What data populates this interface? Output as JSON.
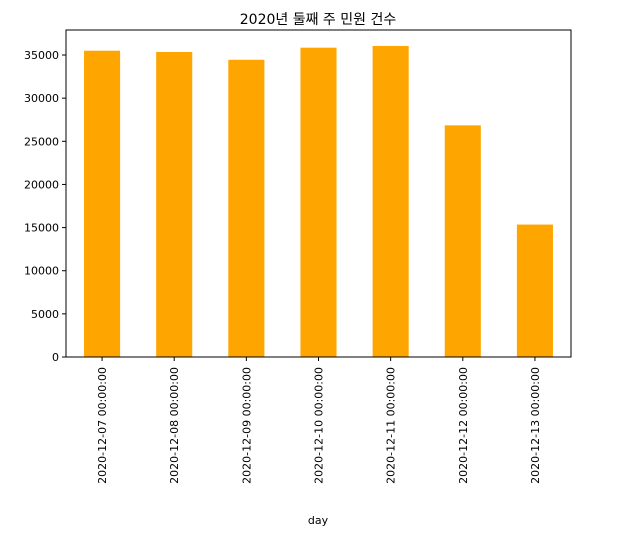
{
  "chart_data": {
    "type": "bar",
    "title": "2020년 둘째 주 민원 건수",
    "xlabel": "day",
    "ylabel": "",
    "categories": [
      "2020-12-07 00:00:00",
      "2020-12-08 00:00:00",
      "2020-12-09 00:00:00",
      "2020-12-10 00:00:00",
      "2020-12-11 00:00:00",
      "2020-12-12 00:00:00",
      "2020-12-13 00:00:00"
    ],
    "values": [
      35500,
      35350,
      34450,
      35850,
      36050,
      26850,
      15350
    ],
    "ylim": [
      0,
      37900
    ],
    "yticks": [
      0,
      5000,
      10000,
      15000,
      20000,
      25000,
      30000,
      35000
    ],
    "ytick_labels": [
      "0",
      "5000",
      "10000",
      "15000",
      "20000",
      "25000",
      "30000",
      "35000"
    ],
    "bar_color": "#ffa500",
    "grid": false,
    "legend": "none"
  }
}
